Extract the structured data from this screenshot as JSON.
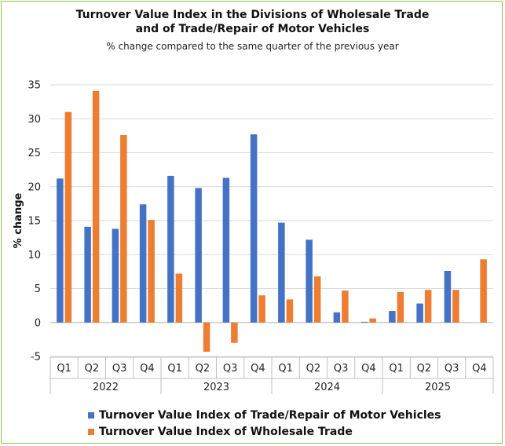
{
  "chart_data": {
    "type": "bar",
    "title_line1": "Turnover Value Index in the Divisions of Wholesale Trade",
    "title_line2": "and of Trade/Repair of Motor Vehicles",
    "subtitle": "% change compared to the same quarter of the previous year",
    "ylabel": "% change",
    "xlabel": "",
    "ylim": [
      -5,
      35
    ],
    "yticks": [
      -5,
      0,
      5,
      10,
      15,
      20,
      25,
      30,
      35
    ],
    "grid": true,
    "legend_position": "bottom",
    "categories": [
      "Q1",
      "Q2",
      "Q3",
      "Q4",
      "Q1",
      "Q2",
      "Q3",
      "Q4",
      "Q1",
      "Q2",
      "Q3",
      "Q4",
      "Q1",
      "Q2",
      "Q3",
      "Q4"
    ],
    "years": [
      "2022",
      "2023",
      "2024",
      "2025"
    ],
    "series": [
      {
        "name": "Turnover Value Index of Trade/Repair of Motor Vehicles",
        "color": "#4472c4",
        "values": [
          21.2,
          14.1,
          13.8,
          17.4,
          21.6,
          19.8,
          21.3,
          27.7,
          14.7,
          12.2,
          1.5,
          0.1,
          1.7,
          2.8,
          7.6,
          null
        ]
      },
      {
        "name": "Turnover Value Index of Wholesale Trade",
        "color": "#ed7d31",
        "values": [
          31.0,
          34.1,
          27.6,
          15.1,
          7.2,
          -4.3,
          -3.0,
          4.0,
          3.4,
          6.8,
          4.7,
          0.6,
          4.5,
          4.8,
          4.8,
          9.3
        ]
      }
    ]
  }
}
